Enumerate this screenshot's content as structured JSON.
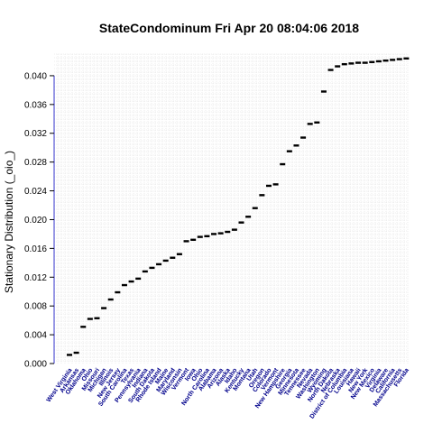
{
  "chart_data": {
    "type": "scatter",
    "title": "StateCondominum  Fri Apr 20 08:04:06 2018",
    "xlabel": "",
    "ylabel": "Stationary Distribution (_oio_)",
    "ylim": [
      0.0,
      0.043
    ],
    "yticks": [
      "0.000",
      "0.004",
      "0.008",
      "0.012",
      "0.016",
      "0.020",
      "0.024",
      "0.028",
      "0.032",
      "0.036",
      "0.040"
    ],
    "grid": true,
    "categories": [
      "West Virginia",
      "Arkansas",
      "Oklahoma",
      "Ohio",
      "Missouri",
      "Michigan",
      "Illinois",
      "New Jersey",
      "South Carolina",
      "Texas",
      "Pennsylvania",
      "Indiana",
      "South Dakota",
      "Rhode Island",
      "Maine",
      "Maryland",
      "Wisconsin",
      "Vermont",
      "Iowa",
      "Ohio",
      "North Carolina",
      "Alabama",
      "Arizona",
      "Alaska",
      "Idaho",
      "Kentucky",
      "Montana",
      "Utah",
      "Oregon",
      "Colorado",
      "Vermont",
      "New Hampshire",
      "Georgia",
      "Minnesota",
      "Tennessee",
      "Nevada",
      "Washington",
      "Wyoming",
      "North Dakota",
      "Nebraska",
      "District of Columbia",
      "Louisiana",
      "Hawaii",
      "New York",
      "New Mexico",
      "Virginia",
      "Delaware",
      "California",
      "Massachusetts",
      "Florida"
    ],
    "values": [
      0.0012,
      0.0015,
      0.0051,
      0.0062,
      0.0063,
      0.0077,
      0.0089,
      0.0099,
      0.0109,
      0.0114,
      0.0118,
      0.0128,
      0.0133,
      0.0138,
      0.0143,
      0.0147,
      0.0152,
      0.017,
      0.0172,
      0.0176,
      0.0177,
      0.018,
      0.0181,
      0.0183,
      0.0186,
      0.0196,
      0.0204,
      0.0216,
      0.0234,
      0.0247,
      0.0249,
      0.0277,
      0.0295,
      0.0303,
      0.0314,
      0.0333,
      0.0335,
      0.0378,
      0.0408,
      0.0413,
      0.0416,
      0.0417,
      0.0418,
      0.0418,
      0.0419,
      0.042,
      0.0421,
      0.0422,
      0.0423,
      0.0424
    ]
  }
}
